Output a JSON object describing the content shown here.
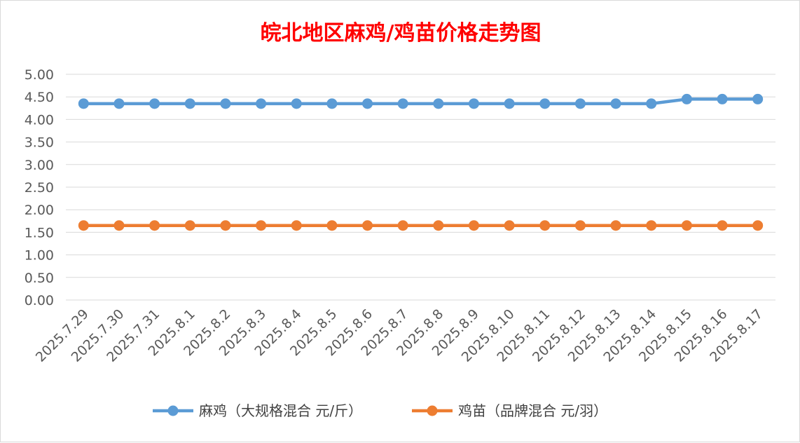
{
  "chart_data": {
    "type": "line",
    "title": "皖北地区麻鸡/鸡苗价格走势图",
    "xlabel": "",
    "ylabel": "",
    "ylim": [
      0,
      5
    ],
    "yticks": [
      "0.00",
      "0.50",
      "1.00",
      "1.50",
      "2.00",
      "2.50",
      "3.00",
      "3.50",
      "4.00",
      "4.50",
      "5.00"
    ],
    "grid": true,
    "legend_position": "bottom",
    "categories": [
      "2025.7.29",
      "2025.7.30",
      "2025.7.31",
      "2025.8.1",
      "2025.8.2",
      "2025.8.3",
      "2025.8.4",
      "2025.8.5",
      "2025.8.6",
      "2025.8.7",
      "2025.8.8",
      "2025.8.9",
      "2025.8.10",
      "2025.8.11",
      "2025.8.12",
      "2025.8.13",
      "2025.8.14",
      "2025.8.15",
      "2025.8.16",
      "2025.8.17"
    ],
    "series": [
      {
        "name": "麻鸡（大规格混合 元/斤）",
        "color": "#5b9bd5",
        "values": [
          4.35,
          4.35,
          4.35,
          4.35,
          4.35,
          4.35,
          4.35,
          4.35,
          4.35,
          4.35,
          4.35,
          4.35,
          4.35,
          4.35,
          4.35,
          4.35,
          4.35,
          4.45,
          4.45,
          4.45
        ]
      },
      {
        "name": "鸡苗（品牌混合 元/羽）",
        "color": "#ed7d31",
        "values": [
          1.65,
          1.65,
          1.65,
          1.65,
          1.65,
          1.65,
          1.65,
          1.65,
          1.65,
          1.65,
          1.65,
          1.65,
          1.65,
          1.65,
          1.65,
          1.65,
          1.65,
          1.65,
          1.65,
          1.65
        ]
      }
    ]
  }
}
